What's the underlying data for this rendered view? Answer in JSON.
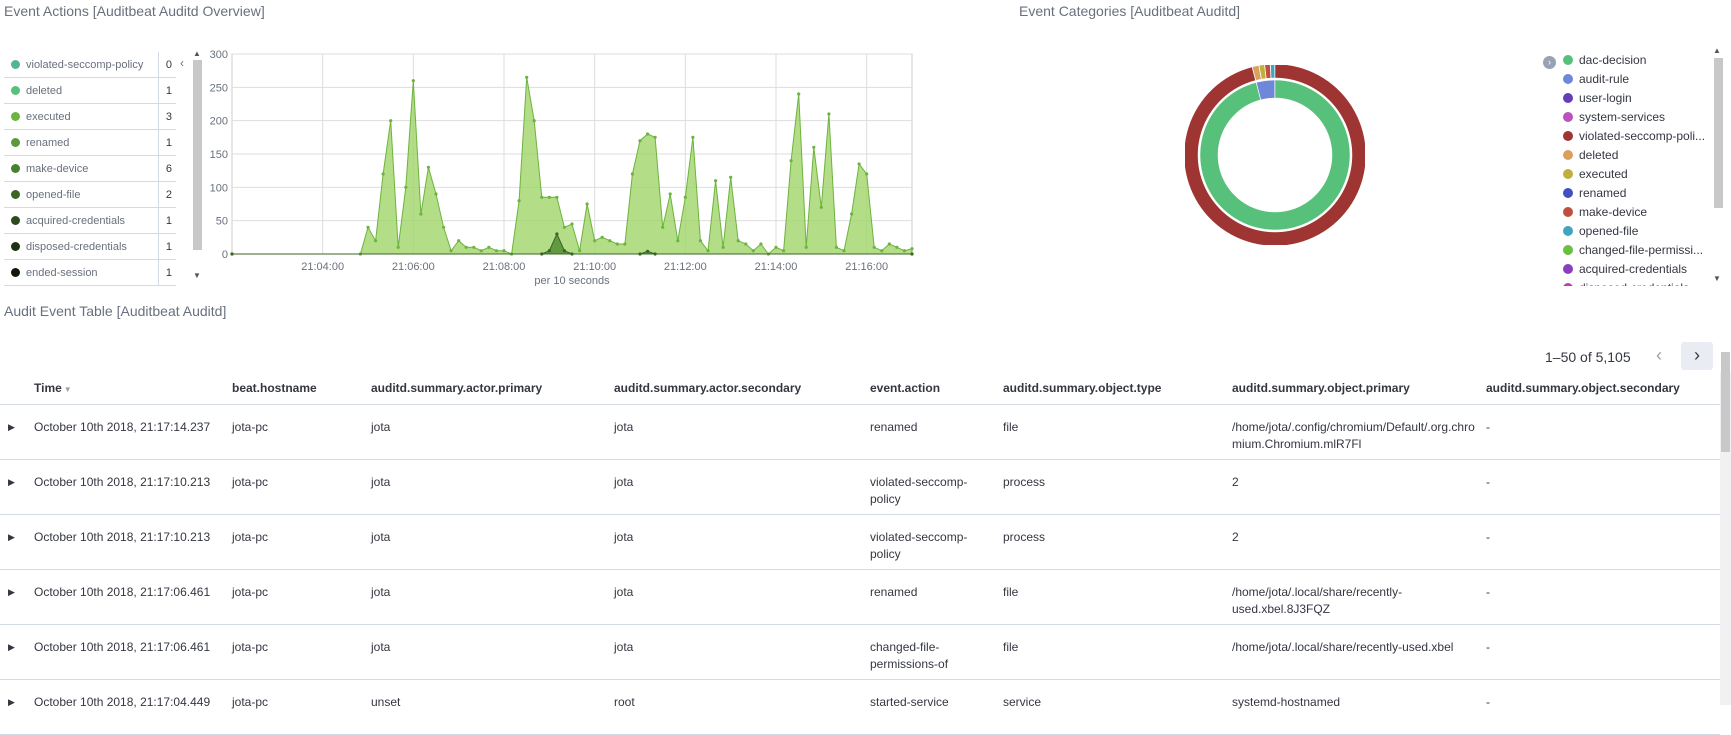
{
  "event_actions": {
    "title": "Event Actions [Auditbeat Auditd Overview]",
    "legend": [
      {
        "label": "violated-seccomp-policy",
        "count": "0",
        "color": "#54b399"
      },
      {
        "label": "deleted",
        "count": "1",
        "color": "#57c17b"
      },
      {
        "label": "executed",
        "count": "3",
        "color": "#6db33f"
      },
      {
        "label": "renamed",
        "count": "1",
        "color": "#5a9a3a"
      },
      {
        "label": "make-device",
        "count": "6",
        "color": "#4a7f2f"
      },
      {
        "label": "opened-file",
        "count": "2",
        "color": "#3a6525"
      },
      {
        "label": "acquired-credentials",
        "count": "1",
        "color": "#2b4b1b"
      },
      {
        "label": "disposed-credentials",
        "count": "1",
        "color": "#1d3212"
      },
      {
        "label": "ended-session",
        "count": "1",
        "color": "#0f1909"
      }
    ],
    "chart_data": {
      "type": "area",
      "xlabel": "per 10 seconds",
      "ylabel": "",
      "ylim": [
        0,
        300
      ],
      "yticks": [
        "0",
        "50",
        "100",
        "150",
        "200",
        "250",
        "300"
      ],
      "xticks": [
        "21:04:00",
        "21:06:00",
        "21:08:00",
        "21:10:00",
        "21:12:00",
        "21:14:00",
        "21:16:00"
      ],
      "x_range": [
        "21:02:00",
        "21:17:00"
      ],
      "series": [
        {
          "color": "#a0d468",
          "points": [
            [
              "21:02:00",
              0
            ],
            [
              "21:04:50",
              0
            ],
            [
              "21:05:00",
              40
            ],
            [
              "21:05:10",
              20
            ],
            [
              "21:05:20",
              120
            ],
            [
              "21:05:30",
              200
            ],
            [
              "21:05:40",
              10
            ],
            [
              "21:05:50",
              100
            ],
            [
              "21:06:00",
              260
            ],
            [
              "21:06:10",
              60
            ],
            [
              "21:06:20",
              130
            ],
            [
              "21:06:30",
              90
            ],
            [
              "21:06:40",
              40
            ],
            [
              "21:06:50",
              5
            ],
            [
              "21:07:00",
              20
            ],
            [
              "21:07:10",
              10
            ],
            [
              "21:07:20",
              10
            ],
            [
              "21:07:30",
              5
            ],
            [
              "21:07:40",
              10
            ],
            [
              "21:07:50",
              5
            ],
            [
              "21:08:00",
              5
            ],
            [
              "21:08:10",
              0
            ],
            [
              "21:08:20",
              80
            ],
            [
              "21:08:30",
              265
            ],
            [
              "21:08:40",
              200
            ],
            [
              "21:08:50",
              85
            ],
            [
              "21:09:00",
              85
            ],
            [
              "21:09:10",
              85
            ],
            [
              "21:09:20",
              40
            ],
            [
              "21:09:30",
              45
            ],
            [
              "21:09:40",
              5
            ],
            [
              "21:09:50",
              75
            ],
            [
              "21:10:00",
              20
            ],
            [
              "21:10:10",
              25
            ],
            [
              "21:10:20",
              20
            ],
            [
              "21:10:30",
              15
            ],
            [
              "21:10:40",
              15
            ],
            [
              "21:10:50",
              120
            ],
            [
              "21:11:00",
              170
            ],
            [
              "21:11:10",
              180
            ],
            [
              "21:11:20",
              175
            ],
            [
              "21:11:30",
              40
            ],
            [
              "21:11:40",
              90
            ],
            [
              "21:11:50",
              20
            ],
            [
              "21:12:00",
              85
            ],
            [
              "21:12:10",
              175
            ],
            [
              "21:12:20",
              20
            ],
            [
              "21:12:30",
              5
            ],
            [
              "21:12:40",
              110
            ],
            [
              "21:12:50",
              10
            ],
            [
              "21:13:00",
              115
            ],
            [
              "21:13:10",
              20
            ],
            [
              "21:13:20",
              15
            ],
            [
              "21:13:30",
              5
            ],
            [
              "21:13:40",
              15
            ],
            [
              "21:13:50",
              0
            ],
            [
              "21:14:00",
              10
            ],
            [
              "21:14:10",
              5
            ],
            [
              "21:14:20",
              140
            ],
            [
              "21:14:30",
              240
            ],
            [
              "21:14:40",
              10
            ],
            [
              "21:14:50",
              160
            ],
            [
              "21:15:00",
              70
            ],
            [
              "21:15:10",
              210
            ],
            [
              "21:15:20",
              10
            ],
            [
              "21:15:30",
              5
            ],
            [
              "21:15:40",
              60
            ],
            [
              "21:15:50",
              135
            ],
            [
              "21:16:00",
              120
            ],
            [
              "21:16:10",
              10
            ],
            [
              "21:16:20",
              5
            ],
            [
              "21:16:30",
              15
            ],
            [
              "21:16:40",
              10
            ],
            [
              "21:16:50",
              5
            ],
            [
              "21:17:00",
              8
            ]
          ]
        },
        {
          "color": "#4e8a2e",
          "points": [
            [
              "21:02:00",
              0
            ],
            [
              "21:08:50",
              0
            ],
            [
              "21:09:00",
              5
            ],
            [
              "21:09:10",
              30
            ],
            [
              "21:09:20",
              5
            ],
            [
              "21:09:30",
              0
            ],
            [
              "21:11:00",
              0
            ],
            [
              "21:11:10",
              4
            ],
            [
              "21:11:20",
              0
            ],
            [
              "21:17:00",
              0
            ]
          ]
        }
      ]
    }
  },
  "event_categories": {
    "title": "Event Categories [Auditbeat Auditd]",
    "legend": [
      {
        "label": "dac-decision",
        "color": "#57c17b"
      },
      {
        "label": "audit-rule",
        "color": "#6f87d8"
      },
      {
        "label": "user-login",
        "color": "#663db8"
      },
      {
        "label": "system-services",
        "color": "#bc52bc"
      },
      {
        "label": "violated-seccomp-poli...",
        "color": "#9e3533"
      },
      {
        "label": "deleted",
        "color": "#daa05d"
      },
      {
        "label": "executed",
        "color": "#bfaf40"
      },
      {
        "label": "renamed",
        "color": "#4050bf"
      },
      {
        "label": "make-device",
        "color": "#bf5040"
      },
      {
        "label": "opened-file",
        "color": "#40a5bf"
      },
      {
        "label": "changed-file-permissi...",
        "color": "#6abf40"
      },
      {
        "label": "acquired-credentials",
        "color": "#8840bf"
      },
      {
        "label": "disposed-credentials",
        "color": "#bf40a7"
      }
    ],
    "chart_data": {
      "type": "pie",
      "donut_rings": [
        {
          "ring": "inner",
          "slices": [
            {
              "label": "dac-decision",
              "value": 96,
              "color": "#57c17b"
            },
            {
              "label": "audit-rule",
              "value": 4,
              "color": "#6f87d8"
            }
          ]
        },
        {
          "ring": "outer",
          "slices": [
            {
              "label": "violated-seccomp-poli...",
              "value": 96,
              "color": "#9e3533"
            },
            {
              "label": "deleted",
              "value": 1.2,
              "color": "#daa05d"
            },
            {
              "label": "executed",
              "value": 1.0,
              "color": "#bfaf40"
            },
            {
              "label": "make-device",
              "value": 1.0,
              "color": "#bf5040"
            },
            {
              "label": "opened-file",
              "value": 0.8,
              "color": "#40a5bf"
            }
          ]
        }
      ]
    }
  },
  "audit_table": {
    "title": "Audit Event Table [Auditbeat Auditd]",
    "pagination": "1–50 of 5,105",
    "prev_icon": "‹",
    "next_icon": "›",
    "sort_icon": "▼",
    "expand_icon": "▶",
    "columns": [
      "Time",
      "beat.hostname",
      "auditd.summary.actor.primary",
      "auditd.summary.actor.secondary",
      "event.action",
      "auditd.summary.object.type",
      "auditd.summary.object.primary",
      "auditd.summary.object.secondary"
    ],
    "rows": [
      [
        "October 10th 2018, 21:17:14.237",
        "jota-pc",
        "jota",
        "jota",
        "renamed",
        "file",
        "/home/jota/.config/chromium/Default/.org.chromium.Chromium.mlR7Fl",
        "-"
      ],
      [
        "October 10th 2018, 21:17:10.213",
        "jota-pc",
        "jota",
        "jota",
        "violated-seccomp-policy",
        "process",
        "2",
        "-"
      ],
      [
        "October 10th 2018, 21:17:10.213",
        "jota-pc",
        "jota",
        "jota",
        "violated-seccomp-policy",
        "process",
        "2",
        "-"
      ],
      [
        "October 10th 2018, 21:17:06.461",
        "jota-pc",
        "jota",
        "jota",
        "renamed",
        "file",
        "/home/jota/.local/share/recently-used.xbel.8J3FQZ",
        "-"
      ],
      [
        "October 10th 2018, 21:17:06.461",
        "jota-pc",
        "jota",
        "jota",
        "changed-file-permissions-of",
        "file",
        "/home/jota/.local/share/recently-used.xbel",
        "-"
      ],
      [
        "October 10th 2018, 21:17:04.449",
        "jota-pc",
        "unset",
        "root",
        "started-service",
        "service",
        "systemd-hostnamed",
        "-"
      ]
    ]
  }
}
